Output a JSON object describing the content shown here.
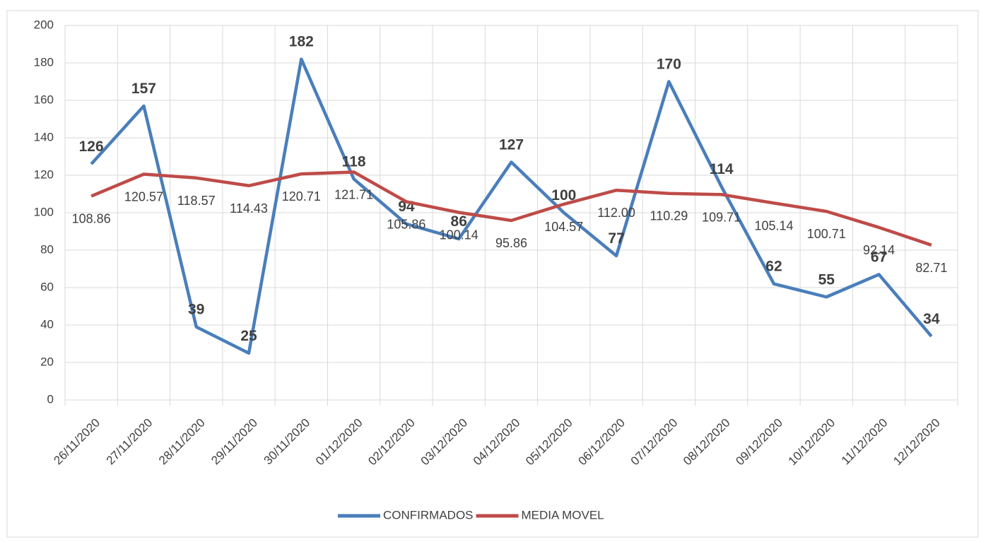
{
  "chart_data": {
    "type": "line",
    "categories": [
      "26/11/2020",
      "27/11/2020",
      "28/11/2020",
      "29/11/2020",
      "30/11/2020",
      "01/12/2020",
      "02/12/2020",
      "03/12/2020",
      "04/12/2020",
      "05/12/2020",
      "06/12/2020",
      "07/12/2020",
      "08/12/2020",
      "09/12/2020",
      "10/12/2020",
      "11/12/2020",
      "12/12/2020"
    ],
    "series": [
      {
        "name": "CONFIRMADOS",
        "color": "#4a7ebb",
        "values": [
          126,
          157,
          39,
          25,
          182,
          118,
          94,
          86,
          127,
          100,
          77,
          170,
          114,
          62,
          55,
          67,
          34
        ]
      },
      {
        "name": "MEDIA MOVEL",
        "color": "#be4b48",
        "values": [
          108.86,
          120.57,
          118.57,
          114.43,
          120.71,
          121.71,
          105.86,
          100.14,
          95.86,
          104.57,
          112.0,
          110.29,
          109.71,
          105.14,
          100.71,
          92.14,
          82.71
        ],
        "value_labels": [
          "108.86",
          "120.57",
          "118.57",
          "114.43",
          "120.71",
          "121.71",
          "105.86",
          "100.14",
          "95.86",
          "104.57",
          "112.00",
          "110.29",
          "109.71",
          "105.14",
          "100.71",
          "92.14",
          "82.71"
        ]
      }
    ],
    "ylim": [
      0,
      200
    ],
    "yticks": [
      0,
      20,
      40,
      60,
      80,
      100,
      120,
      140,
      160,
      180,
      200
    ],
    "grid": true,
    "legend": "bottom"
  }
}
